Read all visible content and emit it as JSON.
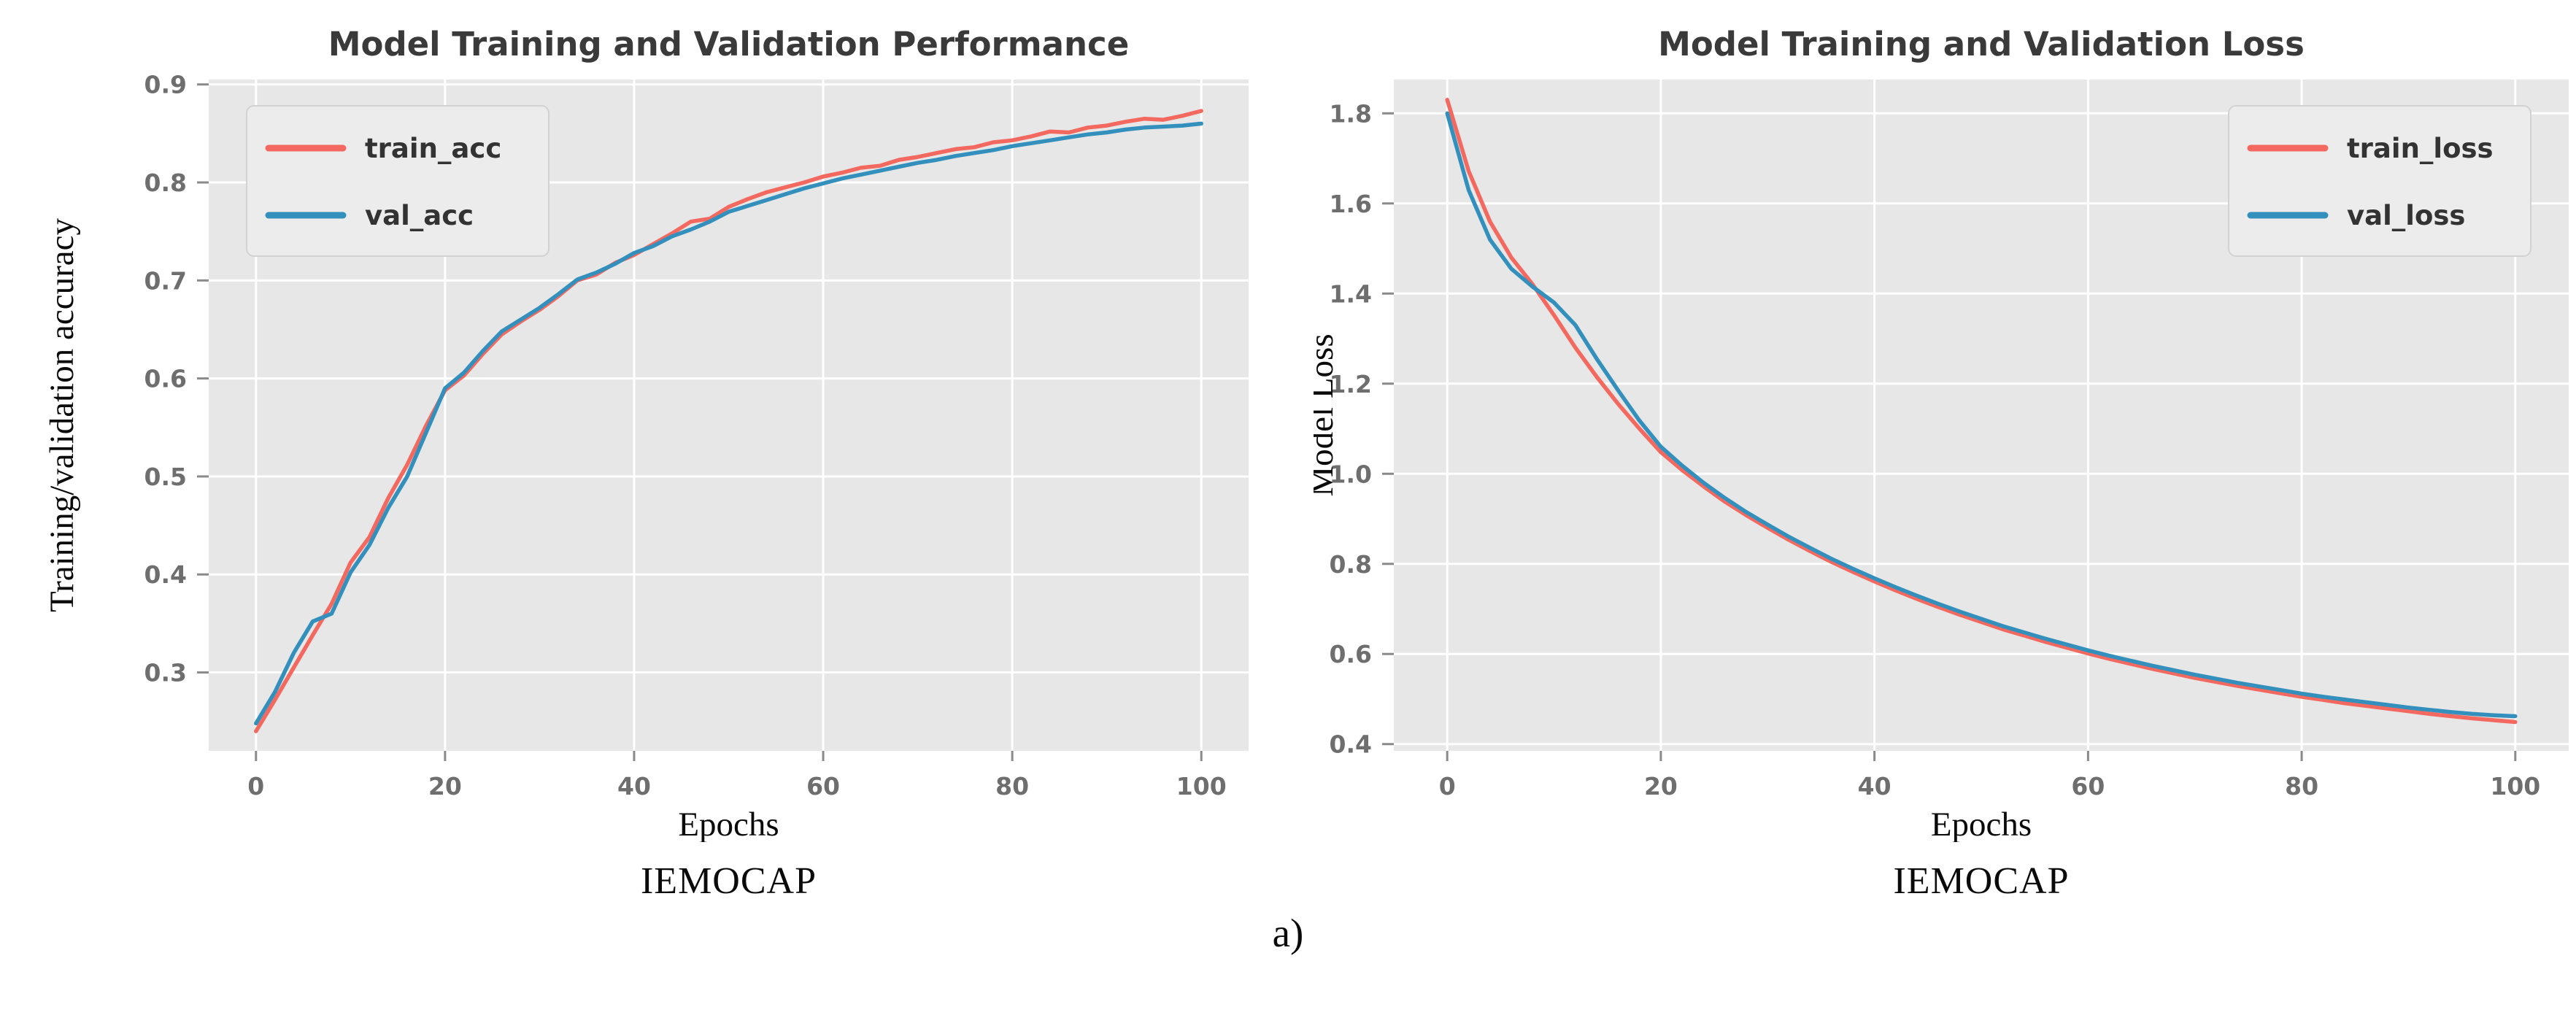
{
  "page": {
    "figure_label": "a)"
  },
  "chart_data": [
    {
      "type": "line",
      "title": "Model Training and Validation Performance",
      "xlabel": "Epochs",
      "ylabel": "Training/validation accuracy",
      "caption": "IEMOCAP",
      "xlim": [
        -5,
        105
      ],
      "ylim": [
        0.22,
        0.905
      ],
      "x_tick_values": [
        0,
        20,
        40,
        60,
        80,
        100
      ],
      "x_tick_labels": [
        "0",
        "20",
        "40",
        "60",
        "80",
        "100"
      ],
      "y_tick_values": [
        0.3,
        0.4,
        0.5,
        0.6,
        0.7,
        0.8,
        0.9
      ],
      "y_tick_labels": [
        "0.3",
        "0.4",
        "0.5",
        "0.6",
        "0.7",
        "0.8",
        "0.9"
      ],
      "grid": true,
      "legend": {
        "position": "top-left",
        "entries": [
          "train_acc",
          "val_acc"
        ]
      },
      "style": {
        "plot_bg": "#e7e7e7",
        "grid": "#ffffff",
        "tick": "#8a8a8a",
        "legend_bg": "#ececec",
        "legend_border": "#d2d2d2"
      },
      "x": [
        0,
        2,
        4,
        6,
        8,
        10,
        12,
        14,
        16,
        18,
        20,
        22,
        24,
        26,
        28,
        30,
        32,
        34,
        36,
        38,
        40,
        42,
        44,
        46,
        48,
        50,
        52,
        54,
        56,
        58,
        60,
        62,
        64,
        66,
        68,
        70,
        72,
        74,
        76,
        78,
        80,
        82,
        84,
        86,
        88,
        90,
        92,
        94,
        96,
        98,
        100
      ],
      "series": [
        {
          "name": "train_acc",
          "color": "#f4695f",
          "y": [
            0.24,
            0.272,
            0.305,
            0.338,
            0.37,
            0.412,
            0.438,
            0.478,
            0.512,
            0.552,
            0.588,
            0.603,
            0.625,
            0.645,
            0.658,
            0.67,
            0.684,
            0.7,
            0.706,
            0.718,
            0.726,
            0.737,
            0.748,
            0.76,
            0.763,
            0.775,
            0.783,
            0.79,
            0.795,
            0.8,
            0.806,
            0.81,
            0.815,
            0.817,
            0.823,
            0.826,
            0.83,
            0.834,
            0.836,
            0.841,
            0.843,
            0.847,
            0.852,
            0.851,
            0.856,
            0.858,
            0.862,
            0.865,
            0.864,
            0.868,
            0.873
          ]
        },
        {
          "name": "val_acc",
          "color": "#3390bd",
          "y": [
            0.248,
            0.28,
            0.32,
            0.352,
            0.36,
            0.402,
            0.43,
            0.468,
            0.5,
            0.545,
            0.59,
            0.606,
            0.628,
            0.648,
            0.66,
            0.672,
            0.686,
            0.701,
            0.708,
            0.717,
            0.728,
            0.735,
            0.745,
            0.752,
            0.76,
            0.77,
            0.776,
            0.782,
            0.788,
            0.794,
            0.799,
            0.804,
            0.808,
            0.812,
            0.816,
            0.82,
            0.823,
            0.827,
            0.83,
            0.833,
            0.837,
            0.84,
            0.843,
            0.846,
            0.849,
            0.851,
            0.854,
            0.856,
            0.857,
            0.858,
            0.86
          ]
        }
      ]
    },
    {
      "type": "line",
      "title": "Model Training and Validation Loss",
      "xlabel": "Epochs",
      "ylabel": "Model Loss",
      "caption": "IEMOCAP",
      "xlim": [
        -5,
        105
      ],
      "ylim": [
        0.385,
        1.875
      ],
      "x_tick_values": [
        0,
        20,
        40,
        60,
        80,
        100
      ],
      "x_tick_labels": [
        "0",
        "20",
        "40",
        "60",
        "80",
        "100"
      ],
      "y_tick_values": [
        0.4,
        0.6,
        0.8,
        1.0,
        1.2,
        1.4,
        1.6,
        1.8
      ],
      "y_tick_labels": [
        "0.4",
        "0.6",
        "0.8",
        "1.0",
        "1.2",
        "1.4",
        "1.6",
        "1.8"
      ],
      "grid": true,
      "legend": {
        "position": "top-right",
        "entries": [
          "train_loss",
          "val_loss"
        ]
      },
      "style": {
        "plot_bg": "#e7e7e7",
        "grid": "#ffffff",
        "tick": "#8a8a8a",
        "legend_bg": "#ececec",
        "legend_border": "#d2d2d2"
      },
      "x": [
        0,
        2,
        4,
        6,
        8,
        10,
        12,
        14,
        16,
        18,
        20,
        22,
        24,
        26,
        28,
        30,
        32,
        34,
        36,
        38,
        40,
        42,
        44,
        46,
        48,
        50,
        52,
        54,
        56,
        58,
        60,
        62,
        64,
        66,
        68,
        70,
        72,
        74,
        76,
        78,
        80,
        82,
        84,
        86,
        88,
        90,
        92,
        94,
        96,
        98,
        100
      ],
      "series": [
        {
          "name": "train_loss",
          "color": "#f4695f",
          "y": [
            1.83,
            1.672,
            1.56,
            1.48,
            1.42,
            1.352,
            1.28,
            1.215,
            1.155,
            1.1,
            1.048,
            1.008,
            0.972,
            0.938,
            0.908,
            0.88,
            0.853,
            0.828,
            0.804,
            0.782,
            0.761,
            0.741,
            0.722,
            0.704,
            0.687,
            0.671,
            0.655,
            0.641,
            0.627,
            0.614,
            0.601,
            0.589,
            0.578,
            0.567,
            0.557,
            0.547,
            0.538,
            0.529,
            0.521,
            0.513,
            0.505,
            0.498,
            0.491,
            0.485,
            0.479,
            0.473,
            0.467,
            0.462,
            0.457,
            0.453,
            0.449
          ]
        },
        {
          "name": "val_loss",
          "color": "#3390bd",
          "y": [
            1.8,
            1.63,
            1.52,
            1.455,
            1.415,
            1.38,
            1.33,
            1.255,
            1.185,
            1.118,
            1.06,
            1.018,
            0.98,
            0.946,
            0.915,
            0.887,
            0.86,
            0.835,
            0.811,
            0.789,
            0.768,
            0.748,
            0.729,
            0.711,
            0.694,
            0.678,
            0.662,
            0.648,
            0.634,
            0.621,
            0.608,
            0.596,
            0.585,
            0.574,
            0.564,
            0.554,
            0.545,
            0.536,
            0.528,
            0.52,
            0.512,
            0.505,
            0.499,
            0.493,
            0.487,
            0.481,
            0.476,
            0.471,
            0.467,
            0.464,
            0.462
          ]
        }
      ]
    }
  ]
}
